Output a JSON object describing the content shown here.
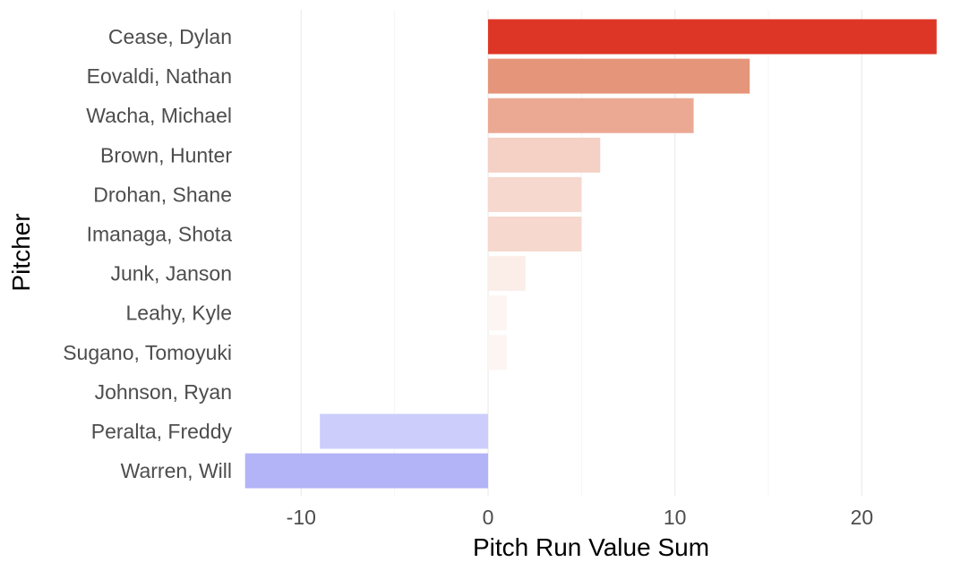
{
  "chart_data": {
    "type": "bar",
    "orientation": "horizontal",
    "title": "",
    "xlabel": "Pitch Run Value Sum",
    "ylabel": "Pitcher",
    "xlim": [
      -13.5,
      24.5
    ],
    "x_ticks": [
      -10,
      0,
      10,
      20
    ],
    "x_tick_labels": [
      "-10",
      "0",
      "10",
      "20"
    ],
    "x_minor_ticks": [
      -5,
      5,
      15
    ],
    "grid": "vertical major and minor lines",
    "legend": "none",
    "categories": [
      "Cease, Dylan",
      "Eovaldi, Nathan",
      "Wacha, Michael",
      "Brown, Hunter",
      "Drohan, Shane",
      "Imanaga, Shota",
      "Junk, Janson",
      "Leahy, Kyle",
      "Sugano, Tomoyuki",
      "Johnson, Ryan",
      "Peralta, Freddy",
      "Warren, Will"
    ],
    "values": [
      24,
      14,
      11,
      6,
      5,
      5,
      2,
      1,
      1,
      0,
      -9,
      -13
    ],
    "bar_colors": [
      "#de3626",
      "#e5967a",
      "#eba994",
      "#f4d0c5",
      "#f6d8ce",
      "#f6d8ce",
      "#fbeee9",
      "#fcf5f2",
      "#fcf5f2",
      "#ffffff",
      "#cdcdfc",
      "#b3b3f7"
    ]
  }
}
